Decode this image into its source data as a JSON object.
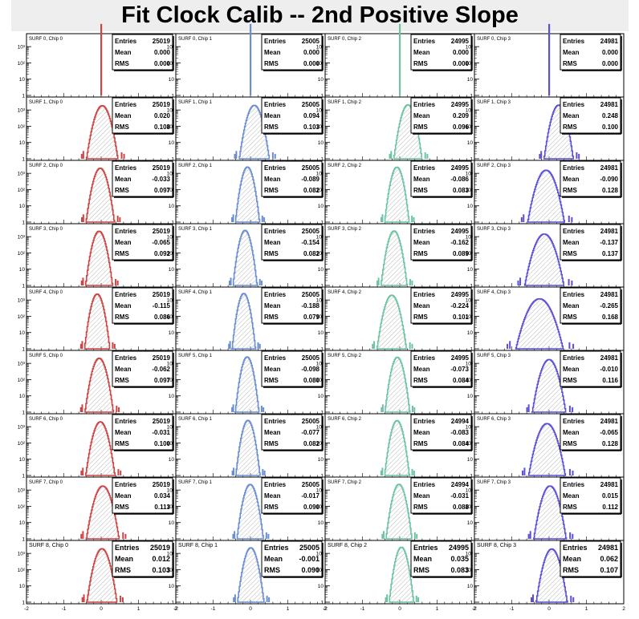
{
  "title": "Fit Clock Calib -- 2nd Positive Slope",
  "chart_data": {
    "type": "histogram-grid",
    "rows": 9,
    "cols": 4,
    "xlim": [
      -2,
      2
    ],
    "x_ticks": [
      "-2",
      "-1",
      "0",
      "1",
      "2"
    ],
    "y_log": true,
    "y_ticks_rows0to7": [
      "1",
      "10",
      "10²",
      "10³"
    ],
    "y_ticks_row8": [
      "1",
      "10",
      "10²",
      "10³"
    ],
    "stat_labels": {
      "entries": "Entries",
      "mean": "Mean",
      "rms": "RMS"
    },
    "chip_colors": [
      "#cc4444",
      "#6a8ed0",
      "#6cc4a0",
      "#5a4fd6"
    ],
    "panels": [
      {
        "label": "SURF 0, Chip 0",
        "entries": "25019",
        "mean": "0.000",
        "rms": "0.000",
        "spike": true
      },
      {
        "label": "SURF 0, Chip 1",
        "entries": "25005",
        "mean": "0.000",
        "rms": "0.000",
        "spike": true
      },
      {
        "label": "SURF 0, Chip 2",
        "entries": "24995",
        "mean": "0.000",
        "rms": "0.000",
        "spike": true
      },
      {
        "label": "SURF 0, Chip 3",
        "entries": "24981",
        "mean": "0.000",
        "rms": "0.000",
        "spike": true
      },
      {
        "label": "SURF 1, Chip 0",
        "entries": "25019",
        "mean": "0.020",
        "rms": "0.108"
      },
      {
        "label": "SURF 1, Chip 1",
        "entries": "25005",
        "mean": "0.094",
        "rms": "0.103"
      },
      {
        "label": "SURF 1, Chip 2",
        "entries": "24995",
        "mean": "0.209",
        "rms": "0.096"
      },
      {
        "label": "SURF 1, Chip 3",
        "entries": "24981",
        "mean": "0.248",
        "rms": "0.100"
      },
      {
        "label": "SURF 2, Chip 0",
        "entries": "25019",
        "mean": "-0.033",
        "rms": "0.097"
      },
      {
        "label": "SURF 2, Chip 1",
        "entries": "25005",
        "mean": "-0.089",
        "rms": "0.082"
      },
      {
        "label": "SURF 2, Chip 2",
        "entries": "24995",
        "mean": "-0.086",
        "rms": "0.083"
      },
      {
        "label": "SURF 2, Chip 3",
        "entries": "24981",
        "mean": "-0.090",
        "rms": "0.128"
      },
      {
        "label": "SURF 3, Chip 0",
        "entries": "25019",
        "mean": "-0.065",
        "rms": "0.092"
      },
      {
        "label": "SURF 3, Chip 1",
        "entries": "25005",
        "mean": "-0.154",
        "rms": "0.082"
      },
      {
        "label": "SURF 3, Chip 2",
        "entries": "24995",
        "mean": "-0.162",
        "rms": "0.089"
      },
      {
        "label": "SURF 3, Chip 3",
        "entries": "24981",
        "mean": "-0.137",
        "rms": "0.137"
      },
      {
        "label": "SURF 4, Chip 0",
        "entries": "25019",
        "mean": "-0.115",
        "rms": "0.086"
      },
      {
        "label": "SURF 4, Chip 1",
        "entries": "25005",
        "mean": "-0.188",
        "rms": "0.079"
      },
      {
        "label": "SURF 4, Chip 2",
        "entries": "24995",
        "mean": "-0.224",
        "rms": "0.101"
      },
      {
        "label": "SURF 4, Chip 3",
        "entries": "24981",
        "mean": "-0.265",
        "rms": "0.168"
      },
      {
        "label": "SURF 5, Chip 0",
        "entries": "25019",
        "mean": "-0.062",
        "rms": "0.097"
      },
      {
        "label": "SURF 5, Chip 1",
        "entries": "25005",
        "mean": "-0.098",
        "rms": "0.080"
      },
      {
        "label": "SURF 5, Chip 2",
        "entries": "24995",
        "mean": "-0.073",
        "rms": "0.084"
      },
      {
        "label": "SURF 5, Chip 3",
        "entries": "24981",
        "mean": "-0.010",
        "rms": "0.116"
      },
      {
        "label": "SURF 6, Chip 0",
        "entries": "25019",
        "mean": "-0.031",
        "rms": "0.100"
      },
      {
        "label": "SURF 6, Chip 1",
        "entries": "25005",
        "mean": "-0.077",
        "rms": "0.082"
      },
      {
        "label": "SURF 6, Chip 2",
        "entries": "24994",
        "mean": "-0.083",
        "rms": "0.084"
      },
      {
        "label": "SURF 6, Chip 3",
        "entries": "24981",
        "mean": "-0.065",
        "rms": "0.128"
      },
      {
        "label": "SURF 7, Chip 0",
        "entries": "25019",
        "mean": "0.034",
        "rms": "0.113"
      },
      {
        "label": "SURF 7, Chip 1",
        "entries": "25005",
        "mean": "-0.017",
        "rms": "0.090"
      },
      {
        "label": "SURF 7, Chip 2",
        "entries": "24994",
        "mean": "-0.031",
        "rms": "0.088"
      },
      {
        "label": "SURF 7, Chip 3",
        "entries": "24981",
        "mean": "0.015",
        "rms": "0.112"
      },
      {
        "label": "SURF 8, Chip 0",
        "entries": "25019",
        "mean": "0.012",
        "rms": "0.103"
      },
      {
        "label": "SURF 8, Chip 1",
        "entries": "25005",
        "mean": "-0.001",
        "rms": "0.090"
      },
      {
        "label": "SURF 8, Chip 2",
        "entries": "24995",
        "mean": "0.035",
        "rms": "0.083"
      },
      {
        "label": "SURF 8, Chip 3",
        "entries": "24981",
        "mean": "0.062",
        "rms": "0.107"
      }
    ]
  }
}
